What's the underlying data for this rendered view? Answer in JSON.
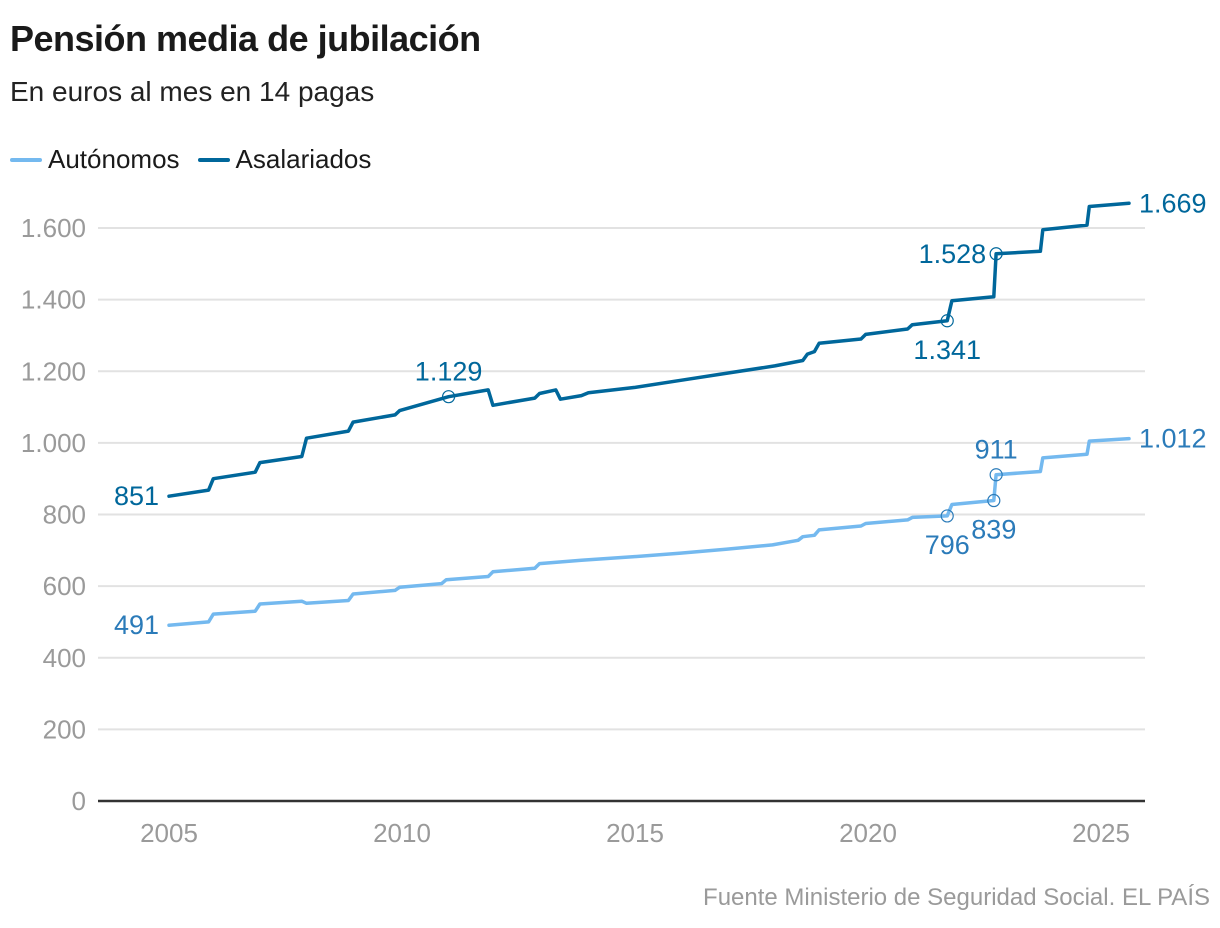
{
  "title": "Pensión media de jubilación",
  "subtitle": "En euros al mes en 14 pagas",
  "source": "Fuente Ministerio de Seguridad Social. EL PAÍS",
  "chart_data": {
    "type": "line",
    "xlim": [
      2003.4,
      2026.0
    ],
    "ylim": [
      0,
      1600
    ],
    "xticks": [
      2005,
      2010,
      2015,
      2020,
      2025
    ],
    "xtick_labels": [
      "2005",
      "2010",
      "2015",
      "2020",
      "2025"
    ],
    "yticks": [
      0,
      200,
      400,
      600,
      800,
      1000,
      1200,
      1400,
      1600
    ],
    "ytick_labels": [
      "0",
      "200",
      "400",
      "600",
      "800",
      "1.000",
      "1.200",
      "1.400",
      "1.600"
    ],
    "grid": "horizontal",
    "legend_placement": "top-left",
    "series": [
      {
        "name": "Autónomos",
        "color": "#74b9ef",
        "label_color": "#2b7bb9",
        "points": [
          [
            2005.0,
            491
          ],
          [
            2005.85,
            500
          ],
          [
            2005.95,
            522
          ],
          [
            2006.85,
            530
          ],
          [
            2006.95,
            550
          ],
          [
            2007.85,
            558
          ],
          [
            2007.95,
            552
          ],
          [
            2008.85,
            560
          ],
          [
            2008.95,
            578
          ],
          [
            2009.85,
            588
          ],
          [
            2009.95,
            597
          ],
          [
            2010.85,
            607
          ],
          [
            2010.95,
            618
          ],
          [
            2011.85,
            627
          ],
          [
            2011.95,
            640
          ],
          [
            2012.85,
            650
          ],
          [
            2012.95,
            663
          ],
          [
            2013.85,
            672
          ],
          [
            2014.95,
            682
          ],
          [
            2015.95,
            692
          ],
          [
            2016.95,
            703
          ],
          [
            2017.95,
            715
          ],
          [
            2018.5,
            728
          ],
          [
            2018.6,
            738
          ],
          [
            2018.85,
            742
          ],
          [
            2018.95,
            757
          ],
          [
            2019.85,
            768
          ],
          [
            2019.95,
            775
          ],
          [
            2020.85,
            785
          ],
          [
            2020.95,
            792
          ],
          [
            2021.7,
            796
          ],
          [
            2021.8,
            828
          ],
          [
            2022.7,
            839
          ],
          [
            2022.75,
            911
          ],
          [
            2023.7,
            920
          ],
          [
            2023.75,
            958
          ],
          [
            2024.7,
            968
          ],
          [
            2024.75,
            1005
          ],
          [
            2025.6,
            1012
          ]
        ],
        "annotations": [
          {
            "x": 2005.0,
            "y": 491,
            "label": "491",
            "marker": false,
            "pos": "left"
          },
          {
            "x": 2021.7,
            "y": 796,
            "label": "796",
            "marker": true,
            "pos": "below"
          },
          {
            "x": 2022.7,
            "y": 839,
            "label": "839",
            "marker": true,
            "pos": "below"
          },
          {
            "x": 2022.75,
            "y": 911,
            "label": "911",
            "marker": true,
            "pos": "above"
          },
          {
            "x": 2025.6,
            "y": 1012,
            "label": "1.012",
            "marker": false,
            "pos": "right"
          }
        ]
      },
      {
        "name": "Asalariados",
        "color": "#00679b",
        "label_color": "#00679b",
        "points": [
          [
            2005.0,
            851
          ],
          [
            2005.85,
            868
          ],
          [
            2005.95,
            900
          ],
          [
            2006.85,
            918
          ],
          [
            2006.95,
            945
          ],
          [
            2007.85,
            962
          ],
          [
            2007.95,
            1013
          ],
          [
            2008.85,
            1033
          ],
          [
            2008.95,
            1058
          ],
          [
            2009.85,
            1078
          ],
          [
            2009.95,
            1090
          ],
          [
            2011.0,
            1129
          ],
          [
            2011.85,
            1148
          ],
          [
            2011.95,
            1105
          ],
          [
            2012.85,
            1125
          ],
          [
            2012.95,
            1138
          ],
          [
            2013.3,
            1148
          ],
          [
            2013.4,
            1122
          ],
          [
            2013.85,
            1132
          ],
          [
            2014.0,
            1140
          ],
          [
            2015.0,
            1155
          ],
          [
            2016.0,
            1175
          ],
          [
            2017.0,
            1195
          ],
          [
            2018.0,
            1215
          ],
          [
            2018.6,
            1230
          ],
          [
            2018.7,
            1248
          ],
          [
            2018.85,
            1255
          ],
          [
            2018.95,
            1278
          ],
          [
            2019.85,
            1290
          ],
          [
            2019.95,
            1303
          ],
          [
            2020.85,
            1318
          ],
          [
            2020.95,
            1330
          ],
          [
            2021.7,
            1341
          ],
          [
            2021.8,
            1397
          ],
          [
            2022.7,
            1408
          ],
          [
            2022.75,
            1528
          ],
          [
            2023.7,
            1535
          ],
          [
            2023.75,
            1595
          ],
          [
            2024.7,
            1608
          ],
          [
            2024.75,
            1660
          ],
          [
            2025.6,
            1669
          ]
        ],
        "annotations": [
          {
            "x": 2005.0,
            "y": 851,
            "label": "851",
            "marker": false,
            "pos": "left"
          },
          {
            "x": 2011.0,
            "y": 1129,
            "label": "1.129",
            "marker": true,
            "pos": "above"
          },
          {
            "x": 2021.7,
            "y": 1341,
            "label": "1.341",
            "marker": true,
            "pos": "below"
          },
          {
            "x": 2022.75,
            "y": 1528,
            "label": "1.528",
            "marker": true,
            "pos": "left"
          },
          {
            "x": 2025.6,
            "y": 1669,
            "label": "1.669",
            "marker": false,
            "pos": "right"
          }
        ]
      }
    ]
  }
}
